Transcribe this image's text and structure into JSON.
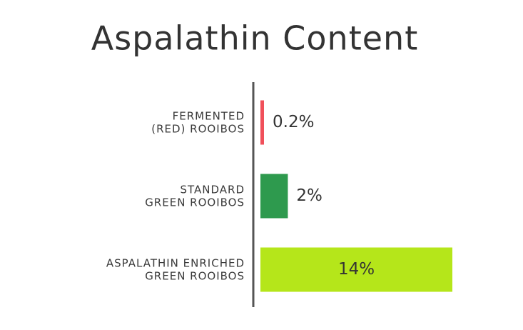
{
  "chart_data": {
    "type": "hbar",
    "title": "Aspalathin Content",
    "categories": [
      "FERMENTED\n(RED) ROOIBOS",
      "STANDARD\nGREEN ROOIBOS",
      "ASPALATHIN ENRICHED\nGREEN ROOIBOS"
    ],
    "values": [
      0.2,
      2,
      14
    ],
    "value_labels": [
      "0.2%",
      "2%",
      "14%"
    ],
    "colors": [
      "#f0505a",
      "#2e9a4e",
      "#b5e61a"
    ]
  }
}
